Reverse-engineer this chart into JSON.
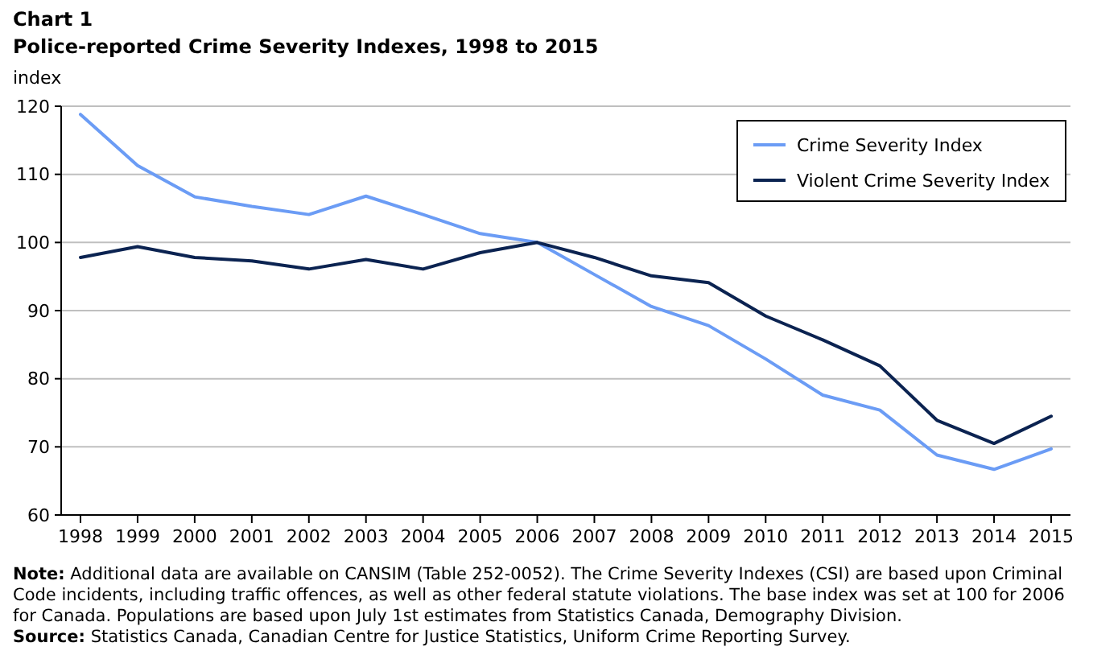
{
  "chart_data": {
    "type": "line",
    "title": "Chart 1",
    "subtitle": "Police-reported Crime Severity Indexes, 1998 to 2015",
    "ylabel": "index",
    "categories": [
      "1998",
      "1999",
      "2000",
      "2001",
      "2002",
      "2003",
      "2004",
      "2005",
      "2006",
      "2007",
      "2008",
      "2009",
      "2010",
      "2011",
      "2012",
      "2013",
      "2014",
      "2015"
    ],
    "series": [
      {
        "name": "Crime Severity Index",
        "color": "#6b9cf5",
        "values": [
          118.8,
          111.3,
          106.7,
          105.3,
          104.1,
          106.8,
          104.1,
          101.3,
          100,
          95.3,
          90.6,
          87.8,
          82.9,
          77.6,
          75.4,
          68.8,
          66.7,
          69.7
        ]
      },
      {
        "name": "Violent Crime Severity Index",
        "color": "#0b2351",
        "values": [
          97.8,
          99.4,
          97.8,
          97.3,
          96.1,
          97.5,
          96.1,
          98.5,
          100,
          97.8,
          95.1,
          94.1,
          89.2,
          85.7,
          81.9,
          73.9,
          70.5,
          74.5
        ]
      }
    ],
    "ylim": [
      60,
      120
    ],
    "yticks": [
      60,
      70,
      80,
      90,
      100,
      110,
      120
    ],
    "grid": "y",
    "legend": "top right",
    "marker": "none",
    "line_style": "solid",
    "annotations": [
      "Note: Additional data are available on CANSIM (Table 252-0052). The Crime Severity Indexes (CSI) are based upon Criminal Code incidents, including traffic offences, as well as other federal statute violations. The base index was set at 100 for 2006 for Canada. Populations are based upon July 1st estimates from Statistics Canada, Demography Division.",
      "Source: Statistics Canada, Canadian Centre for Justice Statistics, Uniform Crime Reporting Survey."
    ]
  }
}
